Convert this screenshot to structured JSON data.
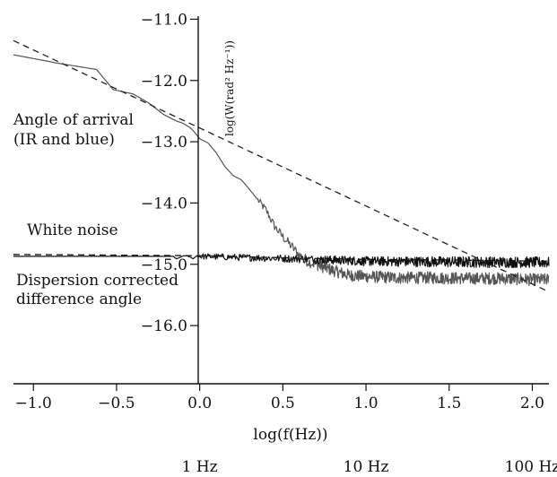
{
  "chart_data": {
    "type": "line",
    "title": "",
    "xlabel": "log(f(Hz))",
    "ylabel": "log(W(rad² Hz⁻¹))",
    "xlim": [
      -1.12,
      2.1
    ],
    "ylim": [
      -16.95,
      -10.95
    ],
    "x_ticks": [
      -1.0,
      -0.5,
      0.0,
      0.5,
      1.0,
      1.5,
      2.0
    ],
    "x_tick_labels": [
      "−1.0",
      "−0.5",
      "0.0",
      "0.5",
      "1.0",
      "1.5",
      "2.0"
    ],
    "y_ticks": [
      -11.0,
      -12.0,
      -13.0,
      -14.0,
      -15.0,
      -16.0
    ],
    "y_tick_labels": [
      "−11.0",
      "−12.0",
      "−13.0",
      "−14.0",
      "−15.0",
      "−16.0"
    ],
    "secondary_x_labels": [
      {
        "x": 0.0,
        "label": "1 Hz"
      },
      {
        "x": 1.0,
        "label": "10 Hz"
      },
      {
        "x": 2.0,
        "label": "100 Hz"
      }
    ],
    "annotations": [
      {
        "id": "aoa1",
        "text": "Angle of arrival"
      },
      {
        "id": "aoa2",
        "text": "(IR and blue)"
      },
      {
        "id": "wn",
        "text": "White noise"
      },
      {
        "id": "dc1",
        "text": "Dispersion corrected"
      },
      {
        "id": "dc2",
        "text": "difference angle"
      }
    ],
    "grid": false,
    "series": [
      {
        "id": "angle-of-arrival",
        "color": "#555555",
        "style": "solid-noisy",
        "points": [
          [
            -1.12,
            -11.58
          ],
          [
            -0.85,
            -11.72
          ],
          [
            -0.62,
            -11.82
          ],
          [
            -0.52,
            -12.15
          ],
          [
            -0.4,
            -12.22
          ],
          [
            -0.3,
            -12.38
          ],
          [
            -0.22,
            -12.55
          ],
          [
            -0.15,
            -12.65
          ],
          [
            -0.1,
            -12.7
          ],
          [
            -0.05,
            -12.78
          ],
          [
            0.0,
            -12.95
          ],
          [
            0.05,
            -13.02
          ],
          [
            0.1,
            -13.18
          ],
          [
            0.15,
            -13.4
          ],
          [
            0.2,
            -13.55
          ],
          [
            0.25,
            -13.62
          ],
          [
            0.3,
            -13.78
          ],
          [
            0.35,
            -13.95
          ],
          [
            0.4,
            -14.12
          ],
          [
            0.45,
            -14.38
          ],
          [
            0.5,
            -14.55
          ],
          [
            0.55,
            -14.7
          ],
          [
            0.6,
            -14.85
          ],
          [
            0.65,
            -14.95
          ],
          [
            0.7,
            -15.0
          ],
          [
            0.8,
            -15.1
          ],
          [
            0.9,
            -15.18
          ],
          [
            1.0,
            -15.2
          ],
          [
            1.2,
            -15.22
          ],
          [
            1.4,
            -15.22
          ],
          [
            1.6,
            -15.23
          ],
          [
            1.8,
            -15.23
          ],
          [
            2.0,
            -15.25
          ],
          [
            2.1,
            -15.25
          ]
        ],
        "noise": {
          "start_x": 0.35,
          "amplitude": 0.06,
          "ramp_end_x": 0.7,
          "ramp_to": 0.1
        }
      },
      {
        "id": "white-noise",
        "color": "#111111",
        "style": "solid-noisy",
        "points": [
          [
            -1.12,
            -14.87
          ],
          [
            0.0,
            -14.87
          ],
          [
            0.7,
            -14.92
          ],
          [
            1.0,
            -14.95
          ],
          [
            1.5,
            -14.96
          ],
          [
            2.1,
            -14.97
          ]
        ],
        "noise": {
          "start_x": -0.15,
          "amplitude": 0.045,
          "ramp_end_x": 1.5,
          "ramp_to": 0.09
        }
      },
      {
        "id": "dispersion-corrected",
        "color": "#111111",
        "style": "dashed",
        "points": [
          [
            -1.12,
            -14.84
          ],
          [
            0.0,
            -14.86
          ],
          [
            0.6,
            -14.9
          ],
          [
            1.0,
            -14.92
          ],
          [
            1.5,
            -14.93
          ],
          [
            2.1,
            -14.95
          ]
        ]
      },
      {
        "id": "fit-line",
        "color": "#222222",
        "style": "dashed",
        "points": [
          [
            -1.12,
            -11.35
          ],
          [
            2.1,
            -15.45
          ]
        ]
      }
    ]
  }
}
